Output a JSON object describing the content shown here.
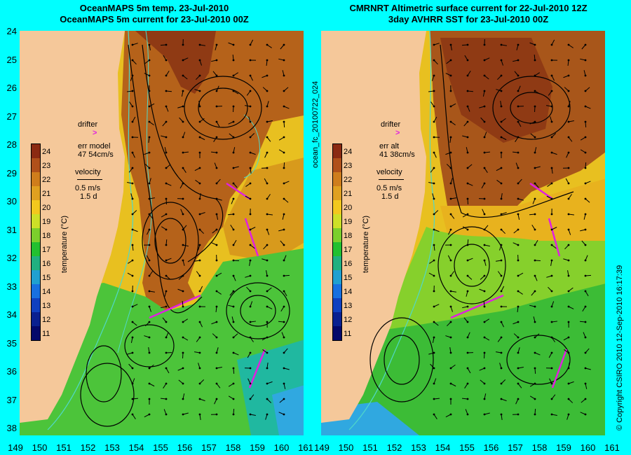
{
  "left_panel": {
    "title_line1": "OceanMAPS 5m temp. 23-Jul-2010",
    "title_line2": "OceanMAPS 5m current for 23-Jul-2010 00Z",
    "drifter_label": "drifter",
    "err_label": "err model",
    "err_values": "47 54cm/s",
    "velocity_label": "velocity",
    "velocity_speed": "0.5 m/s",
    "velocity_duration": "1.5 d"
  },
  "right_panel": {
    "title_line1": "CMRNRT Altimetric surface current for 22-Jul-2010 12Z",
    "title_line2": "3day AVHRR SST for 23-Jul-2010 00Z",
    "drifter_label": "drifter",
    "err_label": "err alt",
    "err_values": "41 38cm/s",
    "velocity_label": "velocity",
    "velocity_speed": "0.5 m/s",
    "velocity_duration": "1.5 d"
  },
  "product_id": "ocean_fc_20100722_024",
  "copyright": "© Copyright CSIRO 2010  12-Sep-2010 16:17:39",
  "colorbar": {
    "title": "temperature (°C)",
    "ticks": [
      "24",
      "23",
      "22",
      "21",
      "20",
      "19",
      "18",
      "17",
      "16",
      "15",
      "14",
      "13",
      "12",
      "11"
    ],
    "colors": [
      "#8b2a12",
      "#b0501a",
      "#cf7d1c",
      "#e0a020",
      "#f2c81e",
      "#cde028",
      "#7ccf2c",
      "#22c030",
      "#20b080",
      "#20a0d0",
      "#1870e0",
      "#1040c0",
      "#0a2090",
      "#04086a"
    ]
  },
  "map": {
    "lat_labels": [
      "24",
      "25",
      "26",
      "27",
      "28",
      "29",
      "30",
      "31",
      "32",
      "33",
      "34",
      "35",
      "36",
      "37",
      "38"
    ],
    "lon_labels": [
      "149",
      "150",
      "151",
      "152",
      "153",
      "154",
      "155",
      "156",
      "157",
      "158",
      "159",
      "160",
      "161"
    ],
    "land_color": "#f5c89a",
    "drifter_color": "#e020e0",
    "contour_color": "#50d8c8"
  }
}
